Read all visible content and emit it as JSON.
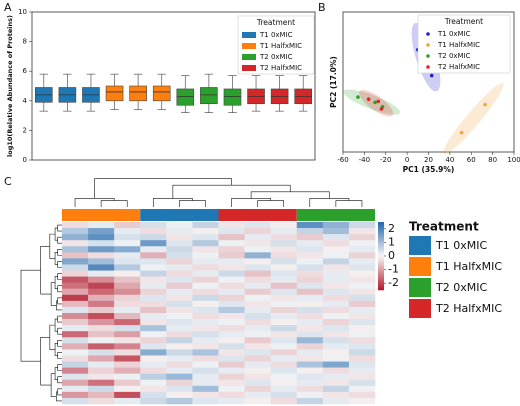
{
  "panel_labels": [
    "A",
    "B",
    "C"
  ],
  "chart_data": [
    {
      "type": "box",
      "ylabel": "log10(Relative Abundance of Proteins)",
      "ylim": [
        0,
        10
      ],
      "yticks": [
        0,
        2,
        4,
        6,
        8,
        10
      ],
      "legend": {
        "title": "Treatment",
        "position": "upper right"
      },
      "series": [
        {
          "name": "T1 0xMIC",
          "color": "#1f77b4",
          "boxes": [
            {
              "low": 3.3,
              "q1": 3.9,
              "median": 4.4,
              "q3": 4.9,
              "high": 5.8
            },
            {
              "low": 3.3,
              "q1": 3.9,
              "median": 4.4,
              "q3": 4.9,
              "high": 5.8
            },
            {
              "low": 3.3,
              "q1": 3.9,
              "median": 4.4,
              "q3": 4.9,
              "high": 5.8
            }
          ]
        },
        {
          "name": "T1 HalfxMIC",
          "color": "#ff7f0e",
          "boxes": [
            {
              "low": 3.4,
              "q1": 4.0,
              "median": 4.6,
              "q3": 5.0,
              "high": 5.8
            },
            {
              "low": 3.4,
              "q1": 4.0,
              "median": 4.6,
              "q3": 5.0,
              "high": 5.8
            },
            {
              "low": 3.4,
              "q1": 4.0,
              "median": 4.6,
              "q3": 5.0,
              "high": 5.8
            }
          ]
        },
        {
          "name": "T2 0xMIC",
          "color": "#2ca02c",
          "boxes": [
            {
              "low": 3.2,
              "q1": 3.7,
              "median": 4.3,
              "q3": 4.8,
              "high": 5.7
            },
            {
              "low": 3.2,
              "q1": 3.8,
              "median": 4.4,
              "q3": 4.9,
              "high": 5.8
            },
            {
              "low": 3.2,
              "q1": 3.7,
              "median": 4.3,
              "q3": 4.8,
              "high": 5.7
            }
          ]
        },
        {
          "name": "T2 HalfxMIC",
          "color": "#d62728",
          "boxes": [
            {
              "low": 3.3,
              "q1": 3.8,
              "median": 4.3,
              "q3": 4.8,
              "high": 5.7
            },
            {
              "low": 3.3,
              "q1": 3.8,
              "median": 4.3,
              "q3": 4.8,
              "high": 5.7
            },
            {
              "low": 3.3,
              "q1": 3.8,
              "median": 4.3,
              "q3": 4.8,
              "high": 5.7
            }
          ]
        }
      ]
    },
    {
      "type": "scatter",
      "xlabel": "PC1 (35.9%)",
      "ylabel": "PC2 (17.0%)",
      "xlim": [
        -60,
        100
      ],
      "xticks": [
        -60,
        -40,
        -20,
        0,
        20,
        40,
        60,
        80,
        100
      ],
      "ylim": [
        -60,
        70
      ],
      "legend": {
        "title": "Treatment",
        "position": "upper right"
      },
      "series": [
        {
          "name": "T1 0xMIC",
          "color": "#2222cc",
          "x": [
            10,
            20,
            23
          ],
          "y": [
            35,
            38,
            11
          ]
        },
        {
          "name": "T1 HalfxMIC",
          "color": "#f2a33a",
          "x": [
            51,
            73
          ],
          "y": [
            -42,
            -16
          ]
        },
        {
          "name": "T2 0xMIC",
          "color": "#2ca02c",
          "x": [
            -46,
            -30,
            -23
          ],
          "y": [
            -9,
            -14,
            -18
          ]
        },
        {
          "name": "T2 HalfxMIC",
          "color": "#e3242b",
          "x": [
            -36,
            -27,
            -24
          ],
          "y": [
            -11,
            -13,
            -20
          ]
        }
      ]
    },
    {
      "type": "heatmap",
      "vlim": [
        -2.5,
        2.5
      ],
      "colorbar_ticks": [
        2,
        1,
        0,
        -1,
        -2
      ],
      "legend": {
        "title": "Treatment",
        "entries": [
          {
            "name": "T1 0xMIC",
            "color": "#1f77b4"
          },
          {
            "name": "T1 HalfxMIC",
            "color": "#ff7f0e"
          },
          {
            "name": "T2 0xMIC",
            "color": "#2ca02c"
          },
          {
            "name": "T2 HalfxMIC",
            "color": "#d62728"
          }
        ]
      },
      "column_groups": [
        {
          "color": "#ff7f0e",
          "values": [
            [
              -0.3,
              0.2,
              -0.5
            ],
            [
              0.8,
              1.5,
              0.2
            ],
            [
              1.2,
              1.8,
              0.4
            ],
            [
              -0.2,
              0.4,
              0.1
            ],
            [
              0.9,
              1.6,
              1.3
            ],
            [
              -0.6,
              -0.3,
              0.2
            ],
            [
              1.4,
              1.0,
              0.3
            ],
            [
              0.5,
              1.9,
              0.8
            ],
            [
              -0.4,
              0.2,
              -0.1
            ],
            [
              -1.8,
              -1.2,
              -0.6
            ],
            [
              -1.5,
              -2.0,
              -0.9
            ],
            [
              -0.9,
              -1.6,
              -1.2
            ],
            [
              -2.1,
              -0.8,
              -0.4
            ],
            [
              -0.7,
              -1.4,
              -0.3
            ],
            [
              0.3,
              -0.5,
              0.2
            ],
            [
              -1.2,
              -1.9,
              -0.7
            ],
            [
              -0.5,
              -1.1,
              -1.6
            ],
            [
              0.2,
              -0.3,
              0.4
            ],
            [
              -1.6,
              -0.6,
              -1.0
            ],
            [
              0.4,
              0.1,
              -0.2
            ],
            [
              -0.8,
              -1.7,
              -1.3
            ],
            [
              0.1,
              0.4,
              -0.3
            ],
            [
              -0.3,
              -0.9,
              -1.8
            ],
            [
              0.6,
              0.2,
              -0.4
            ],
            [
              -1.3,
              -0.4,
              -0.8
            ],
            [
              0.3,
              -0.2,
              0.1
            ],
            [
              -0.9,
              -1.5,
              -0.5
            ],
            [
              0.2,
              0.5,
              -0.1
            ],
            [
              -1.1,
              -0.7,
              -1.9
            ],
            [
              0.4,
              -0.3,
              0.2
            ]
          ]
        },
        {
          "color": "#1f77b4",
          "values": [
            [
              0.4,
              0.1,
              0.6
            ],
            [
              -0.3,
              0.2,
              -0.1
            ],
            [
              0.5,
              -0.2,
              0.3
            ],
            [
              1.6,
              0.3,
              0.8
            ],
            [
              0.2,
              0.5,
              -0.2
            ],
            [
              -0.8,
              0.4,
              0.1
            ],
            [
              0.3,
              -0.4,
              0.2
            ],
            [
              0.1,
              0.2,
              -0.3
            ],
            [
              0.6,
              -0.3,
              0.2
            ],
            [
              -0.2,
              0.3,
              -0.4
            ],
            [
              0.2,
              -0.5,
              0.1
            ],
            [
              -0.4,
              0.2,
              -0.3
            ],
            [
              0.3,
              -0.2,
              0.5
            ],
            [
              -0.3,
              0.4,
              -0.1
            ],
            [
              -0.6,
              -0.2,
              0.3
            ],
            [
              0.2,
              0.1,
              -0.3
            ],
            [
              -0.2,
              0.3,
              0.2
            ],
            [
              0.9,
              0.2,
              -0.2
            ],
            [
              0.1,
              -0.3,
              0.4
            ],
            [
              -0.4,
              0.6,
              0.2
            ],
            [
              0.3,
              -0.1,
              -0.2
            ],
            [
              1.3,
              0.5,
              0.9
            ],
            [
              -0.1,
              0.2,
              -0.3
            ],
            [
              0.2,
              -0.3,
              0.1
            ],
            [
              -0.3,
              0.2,
              0.4
            ],
            [
              0.7,
              1.1,
              0.2
            ],
            [
              0.1,
              -0.4,
              0.2
            ],
            [
              -0.2,
              0.3,
              1.0
            ],
            [
              0.4,
              -0.1,
              -0.2
            ],
            [
              0.5,
              0.8,
              0.3
            ]
          ]
        },
        {
          "color": "#d62728",
          "values": [
            [
              -0.2,
              0.3,
              -0.1
            ],
            [
              0.3,
              -0.4,
              0.2
            ],
            [
              -0.6,
              0.2,
              -0.3
            ],
            [
              0.1,
              -0.2,
              0.4
            ],
            [
              -0.4,
              0.1,
              -0.2
            ],
            [
              -0.5,
              1.2,
              -0.3
            ],
            [
              0.2,
              -0.1,
              0.4
            ],
            [
              -0.2,
              0.3,
              -0.1
            ],
            [
              0.5,
              -0.6,
              0.3
            ],
            [
              0.1,
              -0.3,
              0.2
            ],
            [
              -0.3,
              0.2,
              -0.6
            ],
            [
              0.2,
              -0.5,
              0.3
            ],
            [
              -0.4,
              0.1,
              -0.2
            ],
            [
              0.3,
              -0.2,
              0.1
            ],
            [
              0.8,
              0.2,
              -0.4
            ],
            [
              -0.2,
              0.4,
              0.2
            ],
            [
              0.1,
              -0.3,
              -0.1
            ],
            [
              -0.3,
              0.2,
              0.5
            ],
            [
              0.2,
              0.1,
              -0.2
            ],
            [
              -0.1,
              -0.5,
              0.3
            ],
            [
              0.4,
              -0.2,
              0.1
            ],
            [
              -0.2,
              0.3,
              -0.4
            ],
            [
              0.3,
              -0.4,
              0.2
            ],
            [
              -0.5,
              0.2,
              -0.3
            ],
            [
              0.2,
              -0.1,
              0.3
            ],
            [
              -0.4,
              -0.2,
              0.1
            ],
            [
              -0.2,
              0.3,
              -0.1
            ],
            [
              0.1,
              -0.4,
              0.2
            ],
            [
              -0.3,
              0.2,
              0.4
            ],
            [
              0.2,
              -0.1,
              -0.3
            ]
          ]
        },
        {
          "color": "#2ca02c",
          "values": [
            [
              1.8,
              1.2,
              0.5
            ],
            [
              0.6,
              1.0,
              -0.2
            ],
            [
              -0.5,
              0.3,
              -0.4
            ],
            [
              0.2,
              -0.3,
              0.1
            ],
            [
              0.3,
              -0.1,
              0.2
            ],
            [
              -0.2,
              0.1,
              -0.4
            ],
            [
              0.1,
              0.6,
              0.2
            ],
            [
              0.4,
              -0.2,
              0.3
            ],
            [
              -0.3,
              0.2,
              -0.1
            ],
            [
              -0.4,
              0.2,
              -0.2
            ],
            [
              0.3,
              -0.2,
              0.1
            ],
            [
              -0.6,
              0.3,
              -0.2
            ],
            [
              0.2,
              -0.3,
              0.4
            ],
            [
              -0.1,
              0.2,
              -0.5
            ],
            [
              0.4,
              -0.3,
              0.2
            ],
            [
              -0.3,
              0.1,
              -0.2
            ],
            [
              0.2,
              -0.4,
              0.3
            ],
            [
              -0.2,
              0.3,
              -0.1
            ],
            [
              0.3,
              -0.2,
              0.1
            ],
            [
              1.1,
              0.4,
              -0.3
            ],
            [
              -0.4,
              0.2,
              0.3
            ],
            [
              0.2,
              -0.1,
              0.5
            ],
            [
              -0.2,
              0.1,
              -0.3
            ],
            [
              0.9,
              1.4,
              0.3
            ],
            [
              -0.1,
              -0.3,
              0.2
            ],
            [
              0.3,
              0.2,
              -0.2
            ],
            [
              0.2,
              -0.2,
              0.4
            ],
            [
              -0.3,
              0.6,
              0.1
            ],
            [
              0.1,
              -0.2,
              -0.3
            ],
            [
              0.6,
              0.2,
              -0.1
            ]
          ]
        }
      ]
    }
  ]
}
